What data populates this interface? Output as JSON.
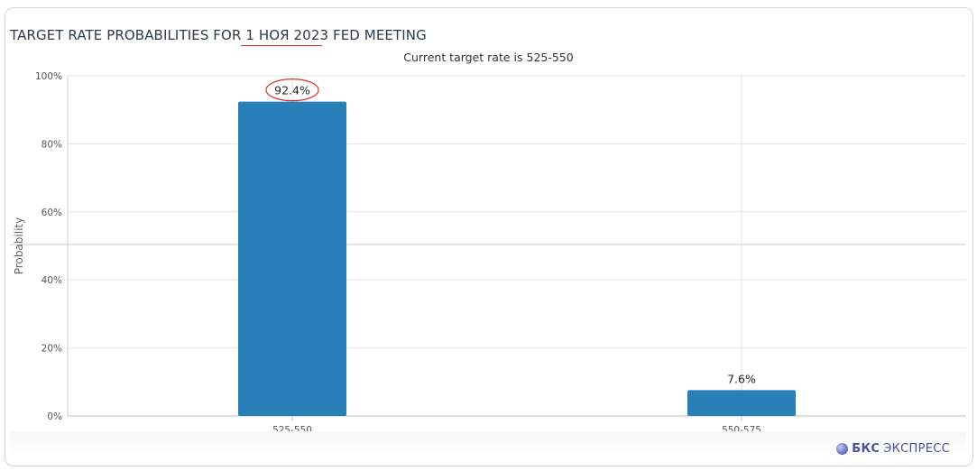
{
  "header": {
    "title_prefix": "TARGET RATE PROBABILITIES FOR ",
    "title_date": "1 НОЯ 2023",
    "title_suffix": " FED MEETING",
    "subtitle": "Current target rate is 525-550"
  },
  "chart_data": {
    "type": "bar",
    "categories": [
      "525-550",
      "550-575"
    ],
    "values": [
      92.4,
      7.6
    ],
    "data_labels": [
      "92.4%",
      "7.6%"
    ],
    "ylabel": "Probability",
    "xlabel": "",
    "ylim": [
      0,
      100
    ],
    "yticks": [
      "0%",
      "20%",
      "40%",
      "60%",
      "80%",
      "100%"
    ],
    "grid": true,
    "highlighted_label_index": 0,
    "bar_color": "#2980b9"
  },
  "footer": {
    "brand_bold": "БКС",
    "brand_text": "ЭКСПРЕСС"
  },
  "colors": {
    "accent_red": "#d9302c",
    "grid": "#e3e3e3"
  }
}
